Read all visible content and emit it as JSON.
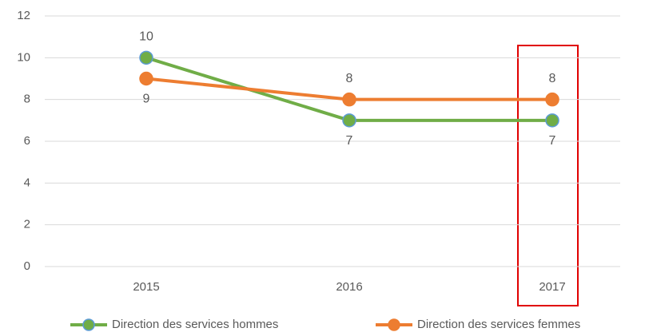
{
  "chart_data": {
    "type": "line",
    "categories": [
      "2015",
      "2016",
      "2017"
    ],
    "series": [
      {
        "name": "Direction des services hommes",
        "color": "#70ad47",
        "values": [
          10,
          7,
          7
        ]
      },
      {
        "name": "Direction des services femmes",
        "color": "#ed7d31",
        "values": [
          9,
          8,
          8
        ]
      }
    ],
    "ylim": [
      0,
      12
    ],
    "yticks": [
      0,
      2,
      4,
      6,
      8,
      10,
      12
    ],
    "grid": true,
    "legend": "bottom"
  }
}
